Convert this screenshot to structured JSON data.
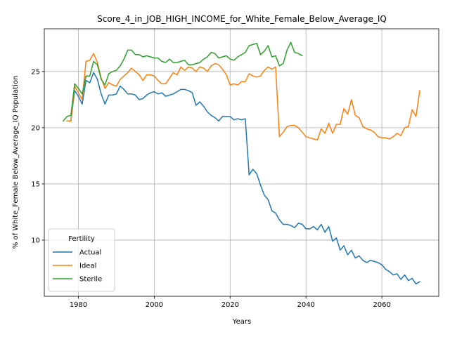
{
  "chart_data": {
    "type": "line",
    "title": "Score_4_in_JOB_HIGH_INCOME_for_White_Female_Below_Average_IQ",
    "xlabel": "Years",
    "ylabel": "% of White_Female Below_Average_IQ Population",
    "xlim": [
      1971,
      2075
    ],
    "ylim": [
      5.0,
      28.8
    ],
    "xticks": [
      1980,
      2000,
      2020,
      2040,
      2060
    ],
    "yticks": [
      10,
      15,
      20,
      25
    ],
    "grid": true,
    "legend": {
      "title": "Fertility",
      "position": "lower-left"
    },
    "series": [
      {
        "name": "Actual",
        "color": "#1f77b4",
        "x": [
          1977,
          1978,
          1979,
          1980,
          1981,
          1982,
          1983,
          1984,
          1985,
          1986,
          1987,
          1988,
          1989,
          1990,
          1991,
          1992,
          1993,
          1994,
          1995,
          1996,
          1997,
          1998,
          1999,
          2000,
          2001,
          2002,
          2003,
          2004,
          2005,
          2006,
          2007,
          2008,
          2009,
          2010,
          2011,
          2012,
          2013,
          2014,
          2015,
          2016,
          2017,
          2018,
          2019,
          2020,
          2021,
          2022,
          2023,
          2024,
          2025,
          2026,
          2027,
          2028,
          2029,
          2030,
          2031,
          2032,
          2033,
          2034,
          2035,
          2036,
          2037,
          2038,
          2039,
          2040,
          2041,
          2042,
          2043,
          2044,
          2045,
          2046,
          2047,
          2048,
          2049,
          2050,
          2051,
          2052,
          2053,
          2054,
          2055,
          2056,
          2057,
          2058,
          2059,
          2060,
          2061,
          2062,
          2063,
          2064,
          2065,
          2066,
          2067,
          2068,
          2069,
          2070
        ],
        "values": [
          20.6,
          20.6,
          23.3,
          22.8,
          22.1,
          24.2,
          24.0,
          24.9,
          24.3,
          23.0,
          22.1,
          22.9,
          22.9,
          23.0,
          23.7,
          23.4,
          23.0,
          23.0,
          22.9,
          22.5,
          22.6,
          22.9,
          23.1,
          23.2,
          23.0,
          23.1,
          22.8,
          22.9,
          23.0,
          23.2,
          23.4,
          23.4,
          23.3,
          23.1,
          22.0,
          22.3,
          21.9,
          21.4,
          21.1,
          20.9,
          20.6,
          21.0,
          21.0,
          21.0,
          20.7,
          20.8,
          20.7,
          20.8,
          15.8,
          16.3,
          15.9,
          14.9,
          14.0,
          13.6,
          12.6,
          12.4,
          11.8,
          11.4,
          11.4,
          11.3,
          11.1,
          11.5,
          11.4,
          11.0,
          11.0,
          11.2,
          10.9,
          11.4,
          10.7,
          11.2,
          9.9,
          10.2,
          9.1,
          9.5,
          8.7,
          9.1,
          8.4,
          8.6,
          8.2,
          8.0,
          8.2,
          8.1,
          8.0,
          7.8,
          7.4,
          7.2,
          6.9,
          7.0,
          6.5,
          6.9,
          6.4,
          6.6,
          6.1,
          6.3
        ]
      },
      {
        "name": "Ideal",
        "color": "#ff7f0e",
        "x": [
          1977,
          1978,
          1979,
          1980,
          1981,
          1982,
          1983,
          1984,
          1985,
          1986,
          1987,
          1988,
          1989,
          1990,
          1991,
          1992,
          1993,
          1994,
          1995,
          1996,
          1997,
          1998,
          1999,
          2000,
          2001,
          2002,
          2003,
          2004,
          2005,
          2006,
          2007,
          2008,
          2009,
          2010,
          2011,
          2012,
          2013,
          2014,
          2015,
          2016,
          2017,
          2018,
          2019,
          2020,
          2021,
          2022,
          2023,
          2024,
          2025,
          2026,
          2027,
          2028,
          2029,
          2030,
          2031,
          2032,
          2033,
          2034,
          2035,
          2036,
          2037,
          2038,
          2039,
          2040,
          2041,
          2042,
          2043,
          2044,
          2045,
          2046,
          2047,
          2048,
          2049,
          2050,
          2051,
          2052,
          2053,
          2054,
          2055,
          2056,
          2057,
          2058,
          2059,
          2060,
          2061,
          2062,
          2063,
          2064,
          2065,
          2066,
          2067,
          2068,
          2069,
          2070
        ],
        "values": [
          20.6,
          20.6,
          23.7,
          23.1,
          22.5,
          25.9,
          26.0,
          26.6,
          25.8,
          24.4,
          23.5,
          24.0,
          23.8,
          23.7,
          24.3,
          24.6,
          24.9,
          25.3,
          25.0,
          24.7,
          24.2,
          24.7,
          24.7,
          24.6,
          24.2,
          23.9,
          23.9,
          24.4,
          24.9,
          24.7,
          25.4,
          25.1,
          25.4,
          25.3,
          25.0,
          25.4,
          25.3,
          25.0,
          25.5,
          25.7,
          25.6,
          25.2,
          24.7,
          23.8,
          23.9,
          23.8,
          24.1,
          24.1,
          24.8,
          24.6,
          24.5,
          24.6,
          25.1,
          25.4,
          25.2,
          25.4,
          19.2,
          19.6,
          20.1,
          20.2,
          20.2,
          20.0,
          19.6,
          19.2,
          19.1,
          19.0,
          18.9,
          19.9,
          19.5,
          20.4,
          19.5,
          20.3,
          20.3,
          21.7,
          21.2,
          22.5,
          21.1,
          20.9,
          20.1,
          19.9,
          19.8,
          19.6,
          19.2,
          19.1,
          19.1,
          19.0,
          19.2,
          19.5,
          19.3,
          20.0,
          20.1,
          21.6,
          21.0,
          23.3
        ]
      },
      {
        "name": "Sterile",
        "color": "#2ca02c",
        "x": [
          1976,
          1977,
          1978,
          1979,
          1980,
          1981,
          1982,
          1983,
          1984,
          1985,
          1986,
          1987,
          1988,
          1989,
          1990,
          1991,
          1992,
          1993,
          1994,
          1995,
          1996,
          1997,
          1998,
          1999,
          2000,
          2001,
          2002,
          2003,
          2004,
          2005,
          2006,
          2007,
          2008,
          2009,
          2010,
          2011,
          2012,
          2013,
          2014,
          2015,
          2016,
          2017,
          2018,
          2019,
          2020,
          2021,
          2022,
          2023,
          2024,
          2025,
          2026,
          2027,
          2028,
          2029,
          2030,
          2031,
          2032,
          2033,
          2034,
          2035,
          2036,
          2037,
          2038,
          2039
        ],
        "values": [
          20.6,
          21.0,
          21.1,
          23.9,
          23.5,
          23.0,
          24.6,
          24.6,
          25.9,
          25.6,
          24.3,
          23.8,
          24.8,
          25.0,
          25.1,
          25.5,
          26.1,
          26.9,
          26.9,
          26.5,
          26.5,
          26.3,
          26.4,
          26.3,
          26.2,
          26.2,
          25.9,
          25.8,
          26.1,
          25.8,
          25.8,
          25.9,
          26.0,
          25.6,
          25.6,
          25.7,
          25.8,
          26.1,
          26.3,
          26.7,
          26.6,
          26.2,
          26.3,
          26.4,
          26.1,
          26.0,
          26.3,
          26.5,
          26.7,
          27.3,
          27.4,
          27.5,
          26.5,
          26.8,
          27.3,
          26.3,
          26.4,
          25.5,
          25.7,
          26.9,
          27.6,
          26.7,
          26.6,
          26.4
        ]
      }
    ]
  }
}
